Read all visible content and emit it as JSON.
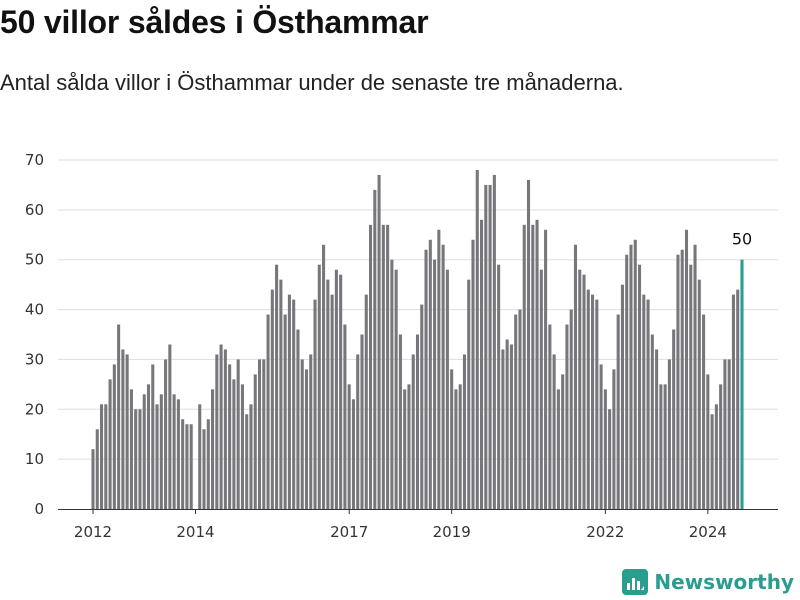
{
  "header": {
    "title": "50 villor såldes i Östhammar",
    "subtitle": "Antal sålda villor i Östhammar under de senaste tre månaderna."
  },
  "brand": {
    "name": "Newsworthy",
    "icon": "newsworthy-logo-icon",
    "color": "#2a9d8f"
  },
  "colors": {
    "bar": "#77767a",
    "highlight": "#2a9d8f",
    "grid": "#dddddd",
    "axis": "#333333"
  },
  "chart_data": {
    "type": "bar",
    "x_start": "2012-01",
    "frequency": "monthly",
    "values": [
      12,
      16,
      21,
      21,
      26,
      29,
      37,
      32,
      31,
      24,
      20,
      20,
      23,
      25,
      29,
      21,
      23,
      30,
      33,
      23,
      22,
      18,
      17,
      17,
      0,
      21,
      16,
      18,
      24,
      31,
      33,
      32,
      29,
      26,
      30,
      25,
      19,
      21,
      27,
      30,
      30,
      39,
      44,
      49,
      46,
      39,
      43,
      42,
      36,
      30,
      28,
      31,
      42,
      49,
      53,
      46,
      43,
      48,
      47,
      37,
      25,
      22,
      31,
      35,
      43,
      57,
      64,
      67,
      57,
      57,
      50,
      48,
      35,
      24,
      25,
      31,
      35,
      41,
      52,
      54,
      50,
      56,
      53,
      48,
      28,
      24,
      25,
      31,
      46,
      54,
      68,
      58,
      65,
      65,
      67,
      49,
      32,
      34,
      33,
      39,
      40,
      57,
      66,
      57,
      58,
      48,
      56,
      37,
      31,
      24,
      27,
      37,
      40,
      53,
      48,
      47,
      44,
      43,
      42,
      29,
      24,
      20,
      28,
      39,
      45,
      51,
      53,
      54,
      49,
      43,
      42,
      35,
      32,
      25,
      25,
      30,
      36,
      51,
      52,
      56,
      49,
      53,
      46,
      39,
      27,
      19,
      21,
      25,
      30,
      30,
      43,
      44,
      50
    ],
    "highlight_last": true,
    "highlight_label": "50",
    "x_ticks": [
      "2012",
      "2014",
      "2017",
      "2019",
      "2022",
      "2024"
    ],
    "x_tick_dates": [
      "2012-01",
      "2014-01",
      "2017-01",
      "2019-01",
      "2022-01",
      "2024-01"
    ],
    "y_ticks": [
      0,
      10,
      20,
      30,
      40,
      50,
      60,
      70
    ],
    "ylim": [
      0,
      70
    ],
    "grid": true,
    "xlabel": "",
    "ylabel": ""
  }
}
